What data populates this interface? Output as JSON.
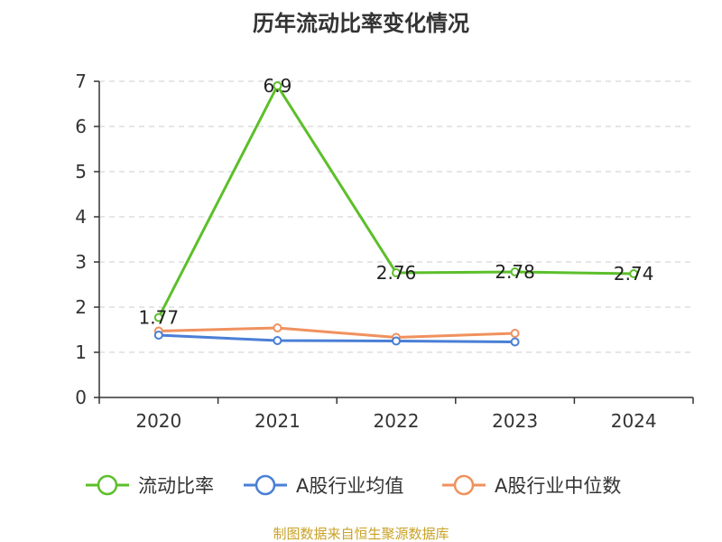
{
  "chart_data": {
    "type": "line",
    "title": "历年流动比率变化情况",
    "categories": [
      "2020",
      "2021",
      "2022",
      "2023",
      "2024"
    ],
    "ylim": [
      0,
      7
    ],
    "yticks": [
      0,
      1,
      2,
      3,
      4,
      5,
      6,
      7
    ],
    "grid": true,
    "legend_position": "bottom",
    "series": [
      {
        "name": "流动比率",
        "color": "#5cbf2a",
        "values": [
          1.77,
          6.9,
          2.76,
          2.78,
          2.74
        ],
        "labels": [
          "1.77",
          "6.9",
          "2.76",
          "2.78",
          "2.74"
        ]
      },
      {
        "name": "A股行业均值",
        "color": "#4a7fd6",
        "values": [
          1.38,
          1.26,
          1.25,
          1.23,
          null
        ]
      },
      {
        "name": "A股行业中位数",
        "color": "#f0915e",
        "values": [
          1.47,
          1.54,
          1.33,
          1.42,
          null
        ]
      }
    ],
    "source": "制图数据来自恒生聚源数据库"
  }
}
